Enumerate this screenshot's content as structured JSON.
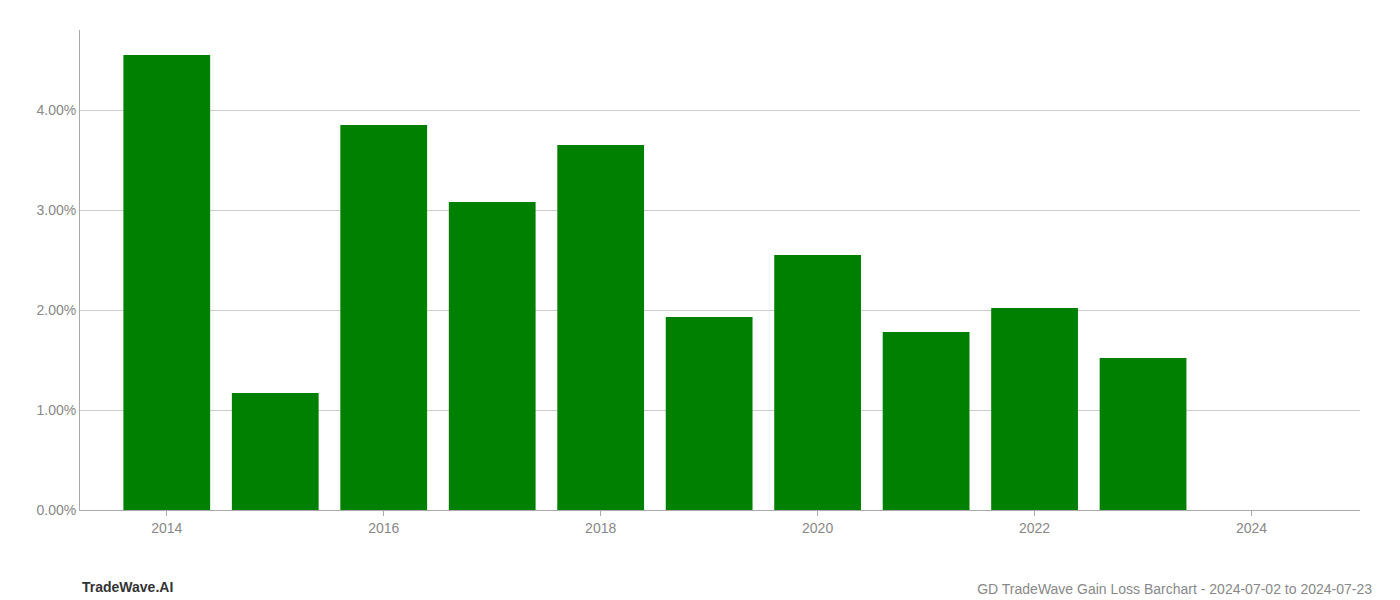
{
  "chart_data": {
    "type": "bar",
    "title": "GD TradeWave Gain Loss Barchart - 2024-07-02 to 2024-07-23",
    "annotations": [
      "TradeWave.AI"
    ],
    "x": [
      2014,
      2015,
      2016,
      2017,
      2018,
      2019,
      2020,
      2021,
      2022,
      2023
    ],
    "values": [
      0.0455,
      0.0117,
      0.0385,
      0.0308,
      0.0365,
      0.0193,
      0.0255,
      0.0178,
      0.0202,
      0.0152
    ],
    "color": "#008000",
    "xlim": [
      2013.2,
      2025.0
    ],
    "xticks": [
      2014,
      2016,
      2018,
      2020,
      2022,
      2024
    ],
    "ylim": [
      0,
      0.048
    ],
    "yticks": [
      {
        "value": 0.0,
        "label": "0.00%"
      },
      {
        "value": 0.01,
        "label": "1.00%"
      },
      {
        "value": 0.02,
        "label": "2.00%"
      },
      {
        "value": 0.03,
        "label": "3.00%"
      },
      {
        "value": 0.04,
        "label": "4.00%"
      }
    ],
    "grid": true
  }
}
